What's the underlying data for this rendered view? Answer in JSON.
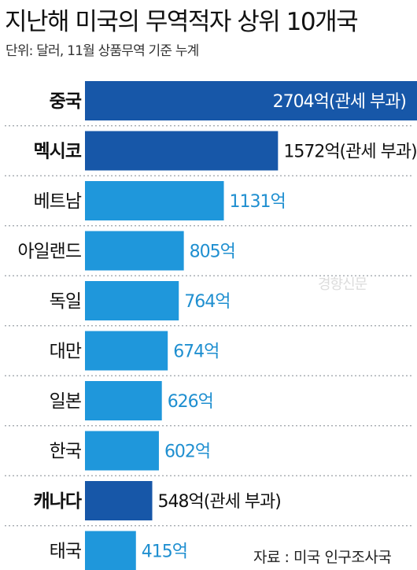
{
  "title": "지난해 미국의 무역적자 상위 10개국",
  "subtitle": "단위: 달러, 11월 상품무역 기준 누계",
  "source": "자료 : 미국 인구조사국",
  "watermark": "경향신문",
  "colors": {
    "highlight": "#1757a8",
    "normal": "#1f97db",
    "text_dark": "#111111",
    "text_on_bar": "#ffffff",
    "value_label_normal": "#1f8fd0"
  },
  "chart_data": {
    "type": "bar",
    "orientation": "horizontal",
    "categories": [
      "중국",
      "멕시코",
      "베트남",
      "아일랜드",
      "독일",
      "대만",
      "일본",
      "한국",
      "캐나다",
      "태국"
    ],
    "values": [
      2704,
      1572,
      1131,
      805,
      764,
      674,
      626,
      602,
      548,
      415
    ],
    "value_labels": [
      "2704억(관세 부과)",
      "1572억(관세 부과)",
      "1131억",
      "805억",
      "764억",
      "674억",
      "626억",
      "602억",
      "548억(관세 부과)",
      "415억"
    ],
    "highlighted": [
      true,
      true,
      false,
      false,
      false,
      false,
      false,
      false,
      true,
      false
    ],
    "unit": "억 달러",
    "xlim": [
      0,
      2704
    ],
    "grid": false,
    "legend": "none"
  }
}
